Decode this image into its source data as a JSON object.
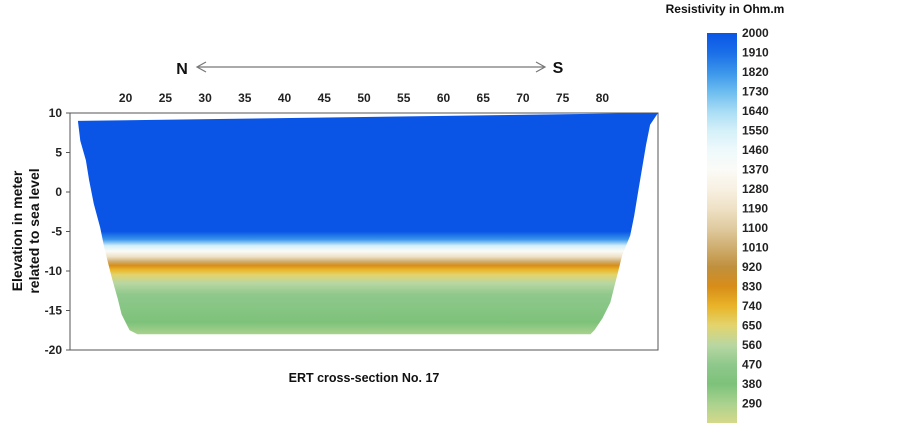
{
  "chart_data": {
    "type": "heatmap",
    "title": "ERT cross-section No. 17",
    "ylabel_lines": [
      "Elevation in meter",
      "related to sea level"
    ],
    "direction": {
      "left": "N",
      "right": "S"
    },
    "x_ticks": [
      20,
      25,
      30,
      35,
      40,
      45,
      50,
      55,
      60,
      65,
      70,
      75,
      80
    ],
    "xlim": [
      13,
      87
    ],
    "y_ticks": [
      10,
      5,
      0,
      -5,
      -10,
      -15,
      -20
    ],
    "ylim": [
      -20,
      10
    ],
    "section_outline": {
      "surface": [
        [
          14,
          9
        ],
        [
          87,
          10
        ]
      ],
      "left_edge": [
        [
          14,
          9
        ],
        [
          14.3,
          6.5
        ],
        [
          15,
          4
        ],
        [
          15.4,
          1.5
        ],
        [
          16,
          -1.5
        ],
        [
          16.8,
          -4.5
        ],
        [
          17.3,
          -7
        ],
        [
          17.8,
          -9
        ],
        [
          18.3,
          -11
        ],
        [
          19,
          -13.5
        ],
        [
          19.5,
          -15.5
        ],
        [
          20.5,
          -17.5
        ],
        [
          21.5,
          -18
        ]
      ],
      "right_edge": [
        [
          87,
          10
        ],
        [
          86,
          8.5
        ],
        [
          85.5,
          6
        ],
        [
          85,
          3
        ],
        [
          84.5,
          0
        ],
        [
          84,
          -3
        ],
        [
          83.5,
          -5.5
        ],
        [
          82.5,
          -8
        ],
        [
          82,
          -10
        ],
        [
          81.5,
          -12
        ],
        [
          81,
          -14
        ],
        [
          80,
          -16
        ],
        [
          79,
          -17.5
        ],
        [
          78.5,
          -18
        ]
      ]
    },
    "resistivity_profile": [
      {
        "elevation": 9,
        "resistivity": 2000
      },
      {
        "elevation": -5,
        "resistivity": 2000
      },
      {
        "elevation": -6,
        "resistivity": 1820
      },
      {
        "elevation": -6.8,
        "resistivity": 1550
      },
      {
        "elevation": -7.5,
        "resistivity": 1370
      },
      {
        "elevation": -8.2,
        "resistivity": 1190
      },
      {
        "elevation": -8.8,
        "resistivity": 1010
      },
      {
        "elevation": -9.3,
        "resistivity": 830
      },
      {
        "elevation": -9.8,
        "resistivity": 740
      },
      {
        "elevation": -10.5,
        "resistivity": 650
      },
      {
        "elevation": -11.5,
        "resistivity": 560
      },
      {
        "elevation": -13,
        "resistivity": 470
      },
      {
        "elevation": -15,
        "resistivity": 420
      },
      {
        "elevation": -16.5,
        "resistivity": 380
      },
      {
        "elevation": -18,
        "resistivity": 290
      }
    ],
    "colorbar": {
      "title": "Resistivity in Ohm.m",
      "range": [
        200,
        2000
      ],
      "ticks": [
        2000,
        1910,
        1820,
        1730,
        1640,
        1550,
        1460,
        1370,
        1280,
        1190,
        1100,
        1010,
        920,
        830,
        740,
        650,
        560,
        470,
        380,
        290
      ],
      "stops": [
        {
          "value": 2000,
          "color": "#0a55e6"
        },
        {
          "value": 1910,
          "color": "#1a6ee8"
        },
        {
          "value": 1820,
          "color": "#3a95ea"
        },
        {
          "value": 1730,
          "color": "#6bbcef"
        },
        {
          "value": 1640,
          "color": "#a7dcf4"
        },
        {
          "value": 1550,
          "color": "#d4f0f9"
        },
        {
          "value": 1460,
          "color": "#eef9fc"
        },
        {
          "value": 1370,
          "color": "#fbfbf7"
        },
        {
          "value": 1280,
          "color": "#f8f0e2"
        },
        {
          "value": 1190,
          "color": "#eee1c6"
        },
        {
          "value": 1100,
          "color": "#e0cba0"
        },
        {
          "value": 1010,
          "color": "#cfae6f"
        },
        {
          "value": 920,
          "color": "#c0903d"
        },
        {
          "value": 830,
          "color": "#d88d18"
        },
        {
          "value": 740,
          "color": "#e9b428"
        },
        {
          "value": 650,
          "color": "#e3d46e"
        },
        {
          "value": 560,
          "color": "#b9d7a2"
        },
        {
          "value": 470,
          "color": "#8fc88c"
        },
        {
          "value": 380,
          "color": "#7dc27a"
        },
        {
          "value": 290,
          "color": "#a9d28e"
        },
        {
          "value": 200,
          "color": "#d5d98a"
        }
      ]
    }
  }
}
